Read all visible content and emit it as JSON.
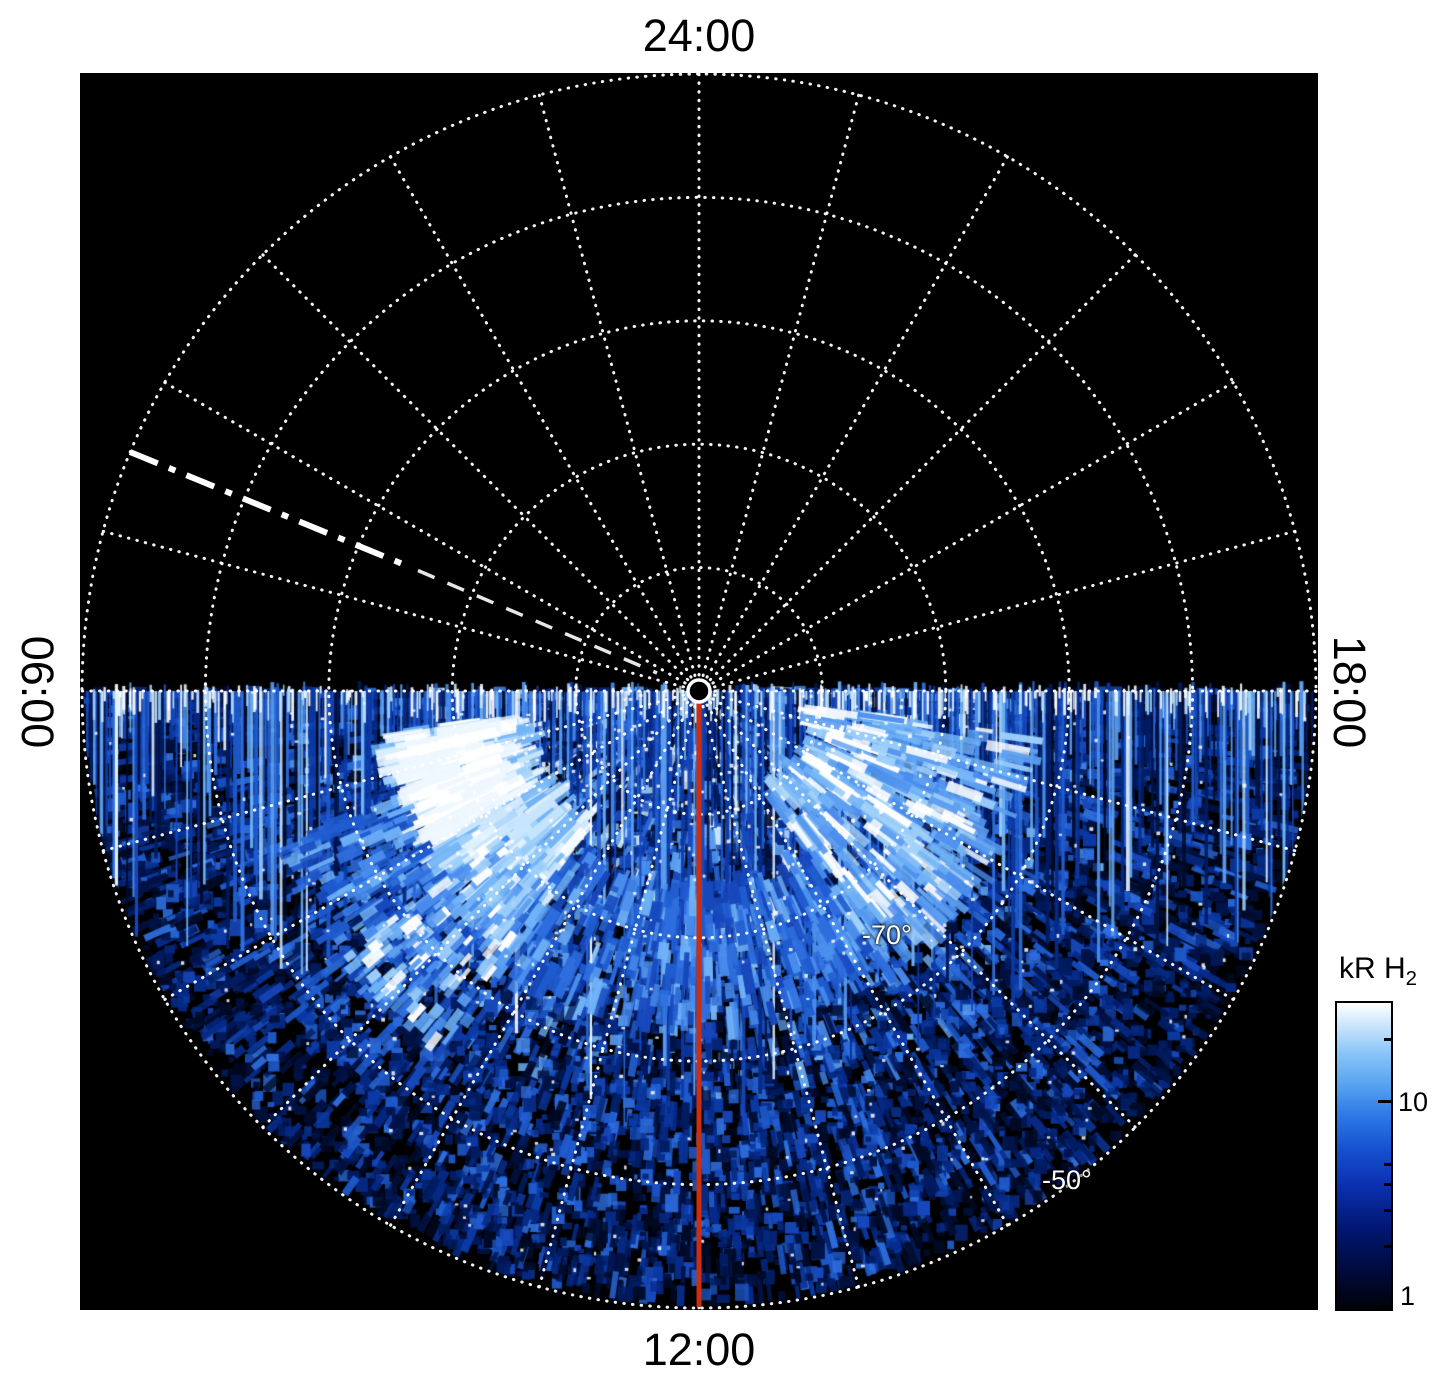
{
  "figure": {
    "labels": {
      "top": "24:00",
      "bottom": "12:00",
      "left": "06:00",
      "right": "18:00",
      "lat_70": "-70°",
      "lat_50": "-50°"
    },
    "colorbar": {
      "title_main": "kR H",
      "title_sub": "2",
      "tick_upper": "10",
      "tick_lower": "1"
    },
    "colors": {
      "grid": "#ffffff",
      "noon_meridian": "#cc2e10",
      "plot_background": "#000000",
      "page_background": "#ffffff",
      "text": "#000000"
    }
  },
  "chart_data": {
    "type": "heatmap",
    "projection": "polar",
    "angular_coordinate": "local time (24:00 top, 06:00 left, 12:00 bottom, 18:00 right), dotted spokes every hour",
    "radial_coordinate": "latitude, pole (-90°) at center, about -50° at the outer edge",
    "rings": [
      {
        "fraction": 0.2
      },
      {
        "fraction": 0.4
      },
      {
        "fraction": 0.6
      },
      {
        "fraction": 0.8
      },
      {
        "fraction": 1.0
      }
    ],
    "spoke_step_deg": 15,
    "latitude_labels": [
      {
        "label": "-70°",
        "fraction": 0.52
      },
      {
        "label": "-50°",
        "fraction": 1.0
      }
    ],
    "colorbar": {
      "title": "kR H2",
      "scale": "log",
      "min": 1,
      "max": 30,
      "ticks": [
        10,
        1
      ],
      "minor_ticks": [
        2,
        3,
        4,
        5,
        20
      ]
    },
    "coverage": "H2 emission fills the dayside half of the disc (06:00 through 12:00 to 18:00); the nightside half toward 24:00 is black (no data)",
    "annotations": [
      {
        "name": "noon-meridian-line",
        "description": "solid red line from the pole to the 12:00 limb"
      },
      {
        "name": "dash-dot-line",
        "description": "white dash-dot line from the ~07:30 LT limb toward the pole"
      },
      {
        "name": "pole-marker",
        "description": "small open white circle at the pole"
      }
    ],
    "features": [
      {
        "label": "dawn bright arc",
        "local_time": "06:30-09:30",
        "latitude": "≈ -78° to -70°",
        "level": "brightest, saturating to white (≳20 kR)",
        "draw": {
          "a0": 128,
          "a1": 172,
          "r0": 185,
          "r1": 310,
          "n": 560,
          "palette": "bright",
          "len": [
            16,
            56
          ]
        }
      },
      {
        "label": "dawn arc white core",
        "local_time": "06:40-08:00",
        "latitude": "≈ -75°",
        "level": "white",
        "draw": {
          "a0": 150,
          "a1": 171,
          "r0": 210,
          "r1": 300,
          "n": 150,
          "palette": "white",
          "len": [
            22,
            62
          ]
        }
      },
      {
        "label": "dusk arc",
        "local_time": "14:15-17:30",
        "latitude": "≈ -82° to -68°",
        "level": "bright (≈10-20 kR)",
        "draw": {
          "a0": 8,
          "a1": 56,
          "r0": 120,
          "r1": 330,
          "n": 460,
          "palette": "light",
          "len": [
            14,
            48
          ]
        }
      },
      {
        "label": "noon-side oval band",
        "local_time": "09:30-14:15",
        "latitude": "≈ -75° to -68°",
        "level": "moderate (≈5-10 kR)",
        "draw": {
          "a0": 56,
          "a1": 128,
          "r0": 200,
          "r1": 335,
          "n": 400,
          "palette": "mid",
          "len": [
            12,
            40
          ]
        }
      },
      {
        "label": "dawn striped extension",
        "local_time": "07:00-09:00",
        "latitude": "≈ -70° to -60°",
        "level": "moderate",
        "draw": {
          "a0": 132,
          "a1": 160,
          "r0": 320,
          "r1": 450,
          "n": 220,
          "palette": "mid",
          "len": [
            10,
            30
          ]
        }
      },
      {
        "label": "dawn dashed ladder",
        "local_time": "07:30-08:30",
        "latitude": "≈ -72° to -61°",
        "level": "bright dashes",
        "draw": {
          "a0": 125,
          "a1": 144,
          "r0": 250,
          "r1": 445,
          "n": 170,
          "palette": "light",
          "len": [
            10,
            26
          ]
        }
      },
      {
        "label": "limb streak band",
        "local_time": "along the 06:00-18:00 line",
        "latitude": "all",
        "level": "dense vertical streaks, mixed brightness",
        "draw": null
      }
    ]
  }
}
